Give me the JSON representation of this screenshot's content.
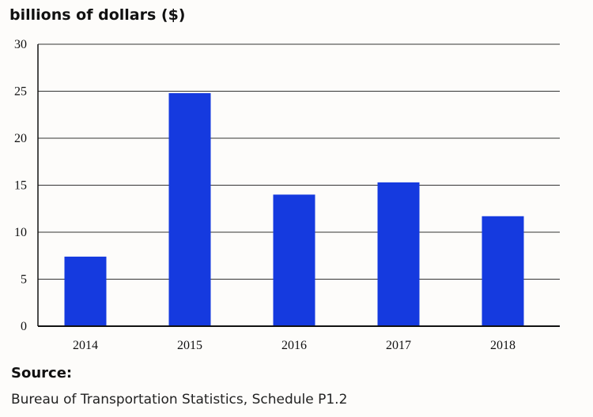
{
  "chart_data": {
    "type": "bar",
    "title": "billions of dollars ($)",
    "xlabel": "",
    "ylabel": "",
    "categories": [
      "2014",
      "2015",
      "2016",
      "2017",
      "2018"
    ],
    "values": [
      7.4,
      24.8,
      14.0,
      15.3,
      11.7
    ],
    "ylim": [
      0,
      30
    ],
    "yticks": [
      0,
      5,
      10,
      15,
      20,
      25,
      30
    ],
    "grid": true,
    "bar_color": "#153adf"
  },
  "source": {
    "label": "Source:",
    "text": "Bureau of Transportation Statistics, Schedule P1.2"
  }
}
